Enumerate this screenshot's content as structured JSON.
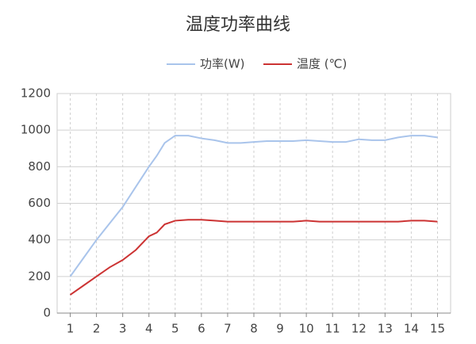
{
  "chart_data": {
    "type": "line",
    "title": "温度功率曲线",
    "x": [
      1,
      1.5,
      2,
      2.5,
      3,
      3.5,
      4,
      4.3,
      4.6,
      5,
      5.5,
      6,
      6.5,
      7,
      7.5,
      8,
      8.5,
      9,
      9.5,
      10,
      10.5,
      11,
      11.5,
      12,
      12.5,
      13,
      13.5,
      14,
      14.5,
      15
    ],
    "series": [
      {
        "name": "功率(W)",
        "color": "#a9c4eb",
        "values": [
          200,
          300,
          400,
          490,
          580,
          690,
          800,
          860,
          930,
          970,
          970,
          955,
          945,
          930,
          930,
          935,
          940,
          940,
          940,
          945,
          940,
          935,
          935,
          950,
          945,
          945,
          960,
          970,
          970,
          960
        ]
      },
      {
        "name": "温度 (℃)",
        "color": "#cc3333",
        "values": [
          100,
          150,
          200,
          250,
          290,
          345,
          420,
          440,
          485,
          505,
          510,
          510,
          505,
          500,
          500,
          500,
          500,
          500,
          500,
          505,
          500,
          500,
          500,
          500,
          500,
          500,
          500,
          505,
          505,
          500
        ]
      }
    ],
    "xlim": [
      0.5,
      15.5
    ],
    "xticks": [
      1,
      2,
      3,
      4,
      5,
      6,
      7,
      8,
      9,
      10,
      11,
      12,
      13,
      14,
      15
    ],
    "ylim": [
      0,
      1200
    ],
    "yticks": [
      0,
      200,
      400,
      600,
      800,
      1000,
      1200
    ],
    "grid": true
  }
}
